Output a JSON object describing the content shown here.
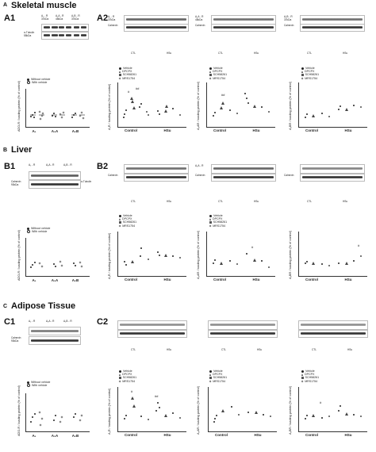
{
  "sections": [
    {
      "letter": "A",
      "title": "Skeletal muscle"
    },
    {
      "letter": "B",
      "title": "Liver"
    },
    {
      "letter": "C",
      "title": "Adipose Tissue"
    }
  ],
  "panels": {
    "A1": "A1",
    "A2": "A2",
    "B1": "B1",
    "B2": "B2",
    "C1": "C1",
    "C2": "C2"
  },
  "blot_labels": {
    "tubulin": "α-Tubulin",
    "tubulin_kda": "55kDa",
    "calnexin": "Calnexin",
    "calnexin_kda": "90kDa",
    "a1r": "A₁ - R",
    "a2ar": "A₂A - R",
    "a2br": "A₂B - R",
    "a3r": "A₃ - R",
    "a1r_kda": "37kDa",
    "a2ar_kda": "45kDa",
    "a2br_kda": "37kDa",
    "a3r_kda": "36kDa",
    "ctl": "CTL",
    "hsu": "HSu",
    "lanes": [
      "Vehicle",
      "DPCPX",
      "SCH58261",
      "MRS1754"
    ],
    "lanes_a1": [
      "CTL",
      "Vehicle"
    ]
  },
  "legends": {
    "a1": [
      "Without vehicle",
      "With vehicle"
    ],
    "a2": [
      "Vehicle",
      "DPCPX",
      "SCH58261",
      "MRS1754"
    ]
  },
  "y_labels": {
    "ado": "ADO-R / loading protein (% of control)",
    "a1": "A₁R / loading protein (% of control)",
    "a2a": "A₂AR / loading protein (% of control)",
    "a2b": "A₂BR / loading protein (% of control)"
  },
  "x_labels": {
    "a1_groups": [
      "A₁",
      "A₂A",
      "A₂B"
    ],
    "a2_groups": [
      "Control",
      "HSu"
    ]
  },
  "annotations": {
    "hash": "#",
    "double_hash": "##"
  }
}
